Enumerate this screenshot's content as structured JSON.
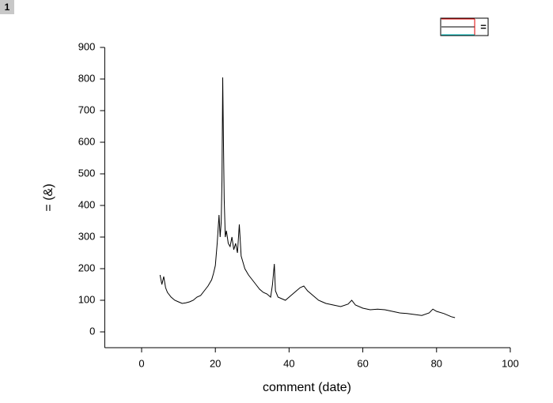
{
  "panel_label": "1",
  "chart_data": {
    "type": "line",
    "xlabel": "comment (date)",
    "ylabel": "= (&)",
    "legend": {
      "label": "="
    },
    "xlim": [
      -10,
      100
    ],
    "xticks": [
      0,
      20,
      40,
      60,
      80,
      100
    ],
    "ylim": [
      -50,
      900
    ],
    "yticks": [
      0,
      100,
      200,
      300,
      400,
      500,
      600,
      700,
      800,
      900
    ],
    "series": [
      {
        "color": "#000000",
        "x": [
          5,
          5.5,
          6,
          6.5,
          7,
          8,
          9,
          10,
          11,
          12,
          13,
          14,
          15,
          16,
          17,
          18,
          19,
          19.5,
          20,
          20.5,
          21,
          21.3,
          21.6,
          21.8,
          22,
          22.2,
          22.4,
          22.7,
          23,
          23.5,
          24,
          24.5,
          25,
          25.5,
          26,
          26.5,
          27,
          27.5,
          28,
          29,
          30,
          31,
          32,
          33,
          34,
          35,
          35.5,
          36,
          36.3,
          37,
          38,
          39,
          40,
          41,
          42,
          43,
          44,
          45,
          46,
          47,
          48,
          49,
          50,
          52,
          54,
          56,
          57,
          58,
          60,
          62,
          64,
          66,
          68,
          70,
          72,
          74,
          76,
          78,
          79,
          80,
          82,
          84,
          85
        ],
        "values": [
          180,
          150,
          175,
          140,
          125,
          110,
          100,
          95,
          90,
          92,
          95,
          100,
          110,
          115,
          130,
          145,
          165,
          185,
          210,
          280,
          370,
          300,
          350,
          480,
          805,
          600,
          420,
          300,
          320,
          280,
          270,
          300,
          260,
          280,
          250,
          340,
          240,
          220,
          200,
          180,
          165,
          150,
          135,
          125,
          120,
          110,
          150,
          215,
          130,
          110,
          105,
          100,
          110,
          120,
          130,
          140,
          145,
          130,
          120,
          110,
          100,
          95,
          90,
          85,
          80,
          88,
          100,
          85,
          75,
          70,
          72,
          70,
          65,
          60,
          58,
          55,
          52,
          60,
          72,
          65,
          58,
          48,
          45
        ]
      }
    ]
  }
}
